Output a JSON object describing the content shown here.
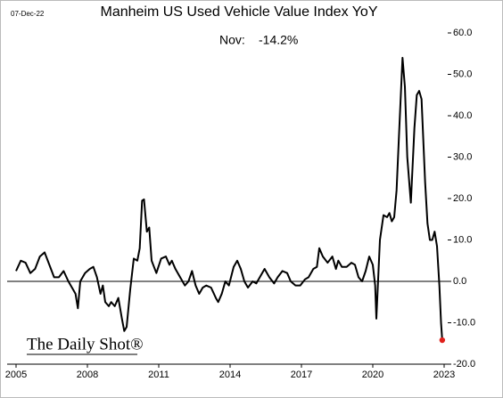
{
  "chart_data": {
    "type": "line",
    "title": "Manheim US Used Vehicle Value Index YoY",
    "date_stamp": "07-Dec-22",
    "annotation_label": "Nov:",
    "annotation_value": "-14.2%",
    "source": "The Daily Shot®",
    "xlim": [
      2005,
      2023
    ],
    "xticks": [
      2005,
      2008,
      2011,
      2014,
      2017,
      2020,
      2023
    ],
    "ylim": [
      -20,
      60
    ],
    "yticks": [
      {
        "value": -20,
        "label": "-20.0"
      },
      {
        "value": -10,
        "label": "-10.0"
      },
      {
        "value": 0,
        "label": "0.0"
      },
      {
        "value": 10,
        "label": "10.0"
      },
      {
        "value": 20,
        "label": "20.0"
      },
      {
        "value": 30,
        "label": "30.0"
      },
      {
        "value": 40,
        "label": "40.0"
      },
      {
        "value": 50,
        "label": "50.0"
      },
      {
        "value": 60,
        "label": "60.0"
      }
    ],
    "grid": false,
    "series": [
      {
        "color": "#000000",
        "x": [
          2005.0,
          2005.2,
          2005.4,
          2005.6,
          2005.8,
          2006.0,
          2006.2,
          2006.4,
          2006.6,
          2006.8,
          2007.0,
          2007.2,
          2007.4,
          2007.5,
          2007.6,
          2007.7,
          2007.9,
          2008.1,
          2008.25,
          2008.4,
          2008.55,
          2008.65,
          2008.75,
          2008.9,
          2009.0,
          2009.15,
          2009.3,
          2009.45,
          2009.55,
          2009.65,
          2009.8,
          2009.95,
          2010.1,
          2010.2,
          2010.3,
          2010.38,
          2010.5,
          2010.6,
          2010.7,
          2010.9,
          2011.1,
          2011.3,
          2011.45,
          2011.55,
          2011.7,
          2011.9,
          2012.1,
          2012.25,
          2012.4,
          2012.55,
          2012.7,
          2012.85,
          2013.0,
          2013.2,
          2013.4,
          2013.5,
          2013.65,
          2013.8,
          2013.95,
          2014.15,
          2014.3,
          2014.45,
          2014.6,
          2014.75,
          2014.95,
          2015.1,
          2015.3,
          2015.45,
          2015.65,
          2015.85,
          2016.0,
          2016.2,
          2016.4,
          2016.55,
          2016.75,
          2016.95,
          2017.15,
          2017.3,
          2017.5,
          2017.65,
          2017.75,
          2017.9,
          2018.1,
          2018.3,
          2018.45,
          2018.55,
          2018.7,
          2018.9,
          2019.1,
          2019.25,
          2019.4,
          2019.55,
          2019.7,
          2019.85,
          2020.0,
          2020.1,
          2020.15,
          2020.3,
          2020.45,
          2020.6,
          2020.7,
          2020.8,
          2020.9,
          2021.0,
          2021.1,
          2021.25,
          2021.35,
          2021.45,
          2021.6,
          2021.75,
          2021.85,
          2021.95,
          2022.05,
          2022.2,
          2022.3,
          2022.4,
          2022.5,
          2022.6,
          2022.7,
          2022.8,
          2022.87,
          2022.92
        ],
        "values": [
          2.5,
          5,
          4.5,
          2,
          3,
          6,
          7,
          4,
          1,
          1,
          2.5,
          0,
          -2,
          -3,
          -6.5,
          0,
          2,
          3,
          3.5,
          1,
          -3,
          -1,
          -5,
          -6,
          -5,
          -6,
          -4,
          -9,
          -12,
          -11,
          -2,
          5.5,
          5,
          8,
          19.5,
          19.8,
          12,
          13,
          5,
          2,
          5.5,
          6,
          4,
          5,
          3,
          1,
          -1,
          0,
          2.5,
          -1,
          -3,
          -1.5,
          -1,
          -1.5,
          -4,
          -5,
          -3,
          0,
          -1,
          3.5,
          5,
          3,
          0,
          -1.5,
          0,
          -0.5,
          1.5,
          3,
          1,
          -0.5,
          1,
          2.5,
          2,
          0,
          -1,
          -1,
          0.5,
          1,
          3,
          3.5,
          8,
          6,
          4.5,
          6,
          3,
          5,
          3.5,
          3.5,
          4.5,
          4,
          1,
          0,
          2.5,
          6,
          4,
          -1,
          -9,
          10,
          16,
          15.5,
          16.5,
          14.5,
          15.5,
          22,
          35,
          54,
          47,
          30,
          19,
          37,
          45,
          46,
          44,
          24,
          14,
          10,
          10,
          12,
          8.5,
          -1,
          -10,
          -14.2
        ],
        "last_point_color": "#e0201b"
      }
    ]
  }
}
